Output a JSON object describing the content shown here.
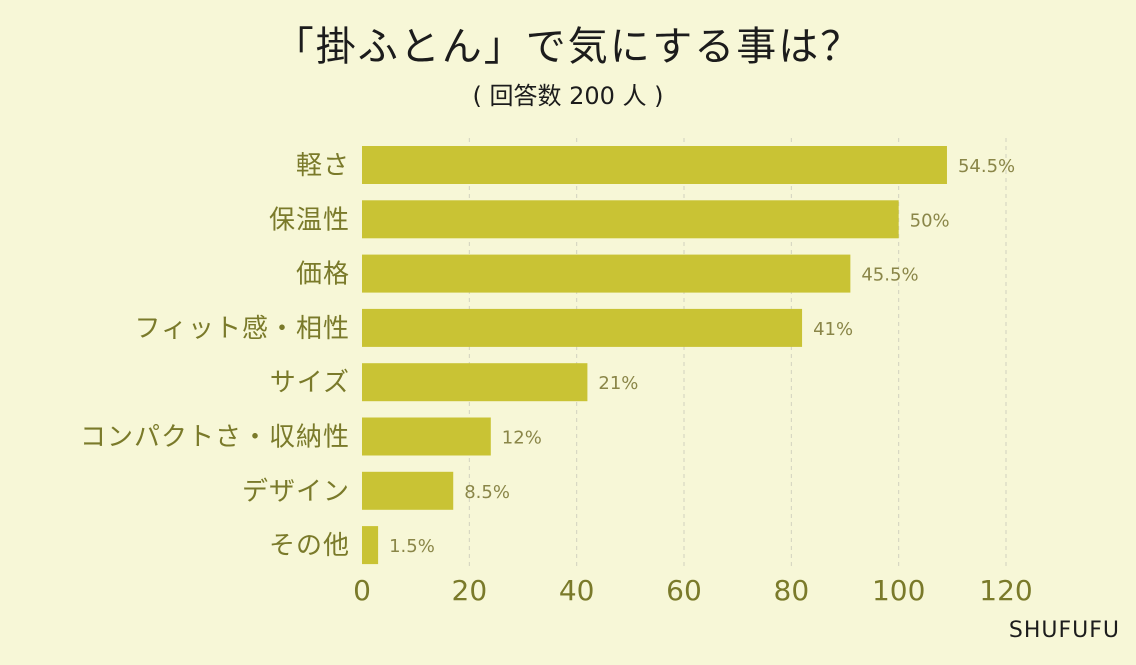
{
  "header": {
    "title": "「掛ふとん」で気にする事は？",
    "subtitle": "( 回答数 200 人 )"
  },
  "footer": {
    "brand": "SHUFUFU"
  },
  "colors": {
    "bar": "#c9c334",
    "background": "#f7f7d7",
    "label": "#7a7a2a",
    "value_label": "#8a8648",
    "grid": "#d2d2bf"
  },
  "chart_data": {
    "type": "bar",
    "orientation": "horizontal",
    "categories": [
      "軽さ",
      "保温性",
      "価格",
      "フィット感・相性",
      "サイズ",
      "コンパクトさ・収納性",
      "デザイン",
      "その他"
    ],
    "values": [
      109,
      100,
      91,
      82,
      42,
      24,
      17,
      3
    ],
    "value_labels": [
      "54.5%",
      "50%",
      "45.5%",
      "41%",
      "21%",
      "12%",
      "8.5%",
      "1.5%"
    ],
    "xlim": [
      0,
      120
    ],
    "xticks": [
      0,
      20,
      40,
      60,
      80,
      100,
      120
    ],
    "grid": "vertical dashed",
    "legend": "none"
  }
}
